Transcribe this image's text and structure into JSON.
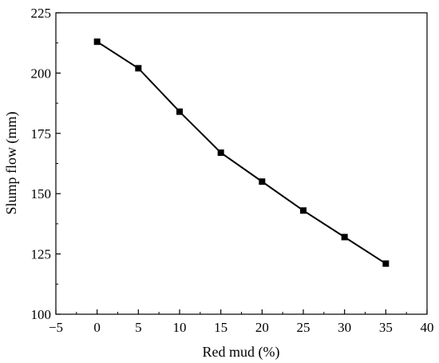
{
  "chart_data": {
    "type": "line",
    "xlabel": "Red mud (%)",
    "ylabel": "Slump flow (mm)",
    "xlim": [
      -5,
      40
    ],
    "ylim": [
      100,
      225
    ],
    "xticks": [
      -5,
      0,
      5,
      10,
      15,
      20,
      25,
      30,
      35,
      40
    ],
    "yticks": [
      100,
      125,
      150,
      175,
      200,
      225
    ],
    "xtick_labels": [
      "−5",
      "0",
      "5",
      "10",
      "15",
      "20",
      "25",
      "30",
      "35",
      "40"
    ],
    "ytick_labels": [
      "100",
      "125",
      "150",
      "175",
      "200",
      "225"
    ],
    "grid": false,
    "series": [
      {
        "marker": "square",
        "color": "#000000",
        "x": [
          0,
          5,
          10,
          15,
          20,
          25,
          30,
          35
        ],
        "y": [
          213,
          202,
          184,
          167,
          155,
          143,
          132,
          121
        ]
      }
    ]
  }
}
